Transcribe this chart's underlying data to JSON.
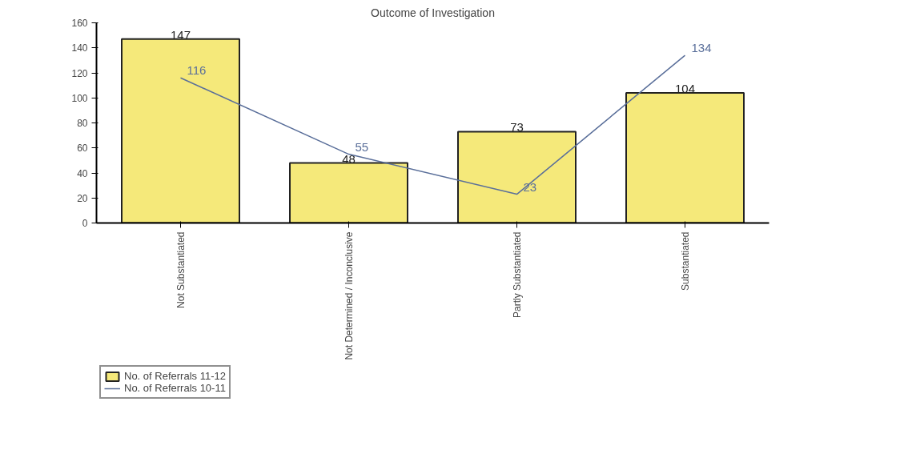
{
  "chart_data": {
    "type": "bar",
    "title": "Outcome of Investigation",
    "categories": [
      "Not Substantiated",
      "Not Determined / Inconclusive",
      "Partly Substantiated",
      "Substantiated"
    ],
    "series": [
      {
        "name": "No. of Referrals 11-12",
        "color": "#f5e97a",
        "values": [
          147,
          48,
          73,
          104
        ]
      },
      {
        "name": "No. of Referrals 10-11",
        "type": "line",
        "color": "#5a6f9a",
        "values": [
          116,
          55,
          23,
          134
        ]
      }
    ],
    "ylim": [
      0,
      160
    ],
    "yticks": [
      0,
      20,
      40,
      60,
      80,
      100,
      120,
      140,
      160
    ],
    "grid": false,
    "legend": "bottom left",
    "data_labels": true,
    "marker": "none",
    "line_style": "solid"
  }
}
